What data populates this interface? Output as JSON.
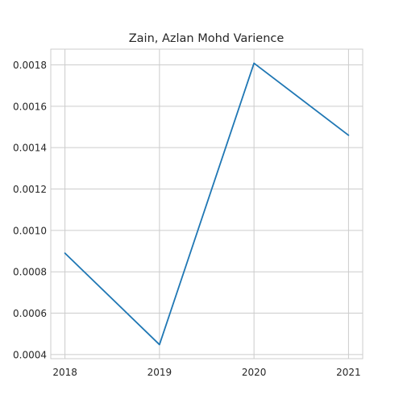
{
  "chart_data": {
    "type": "line",
    "title": "Zain, Azlan Mohd Varience",
    "xlabel": "",
    "ylabel": "",
    "x": [
      2018,
      2019,
      2020,
      2021
    ],
    "x_tick_labels": [
      "2018",
      "2019",
      "2020",
      "2021"
    ],
    "series": [
      {
        "values": [
          0.00089,
          0.000448,
          0.001808,
          0.00146
        ]
      }
    ],
    "y_ticks": [
      0.0004,
      0.0006,
      0.0008,
      0.001,
      0.0012,
      0.0014,
      0.0016,
      0.0018
    ],
    "y_tick_labels": [
      "0.0004",
      "0.0006",
      "0.0008",
      "0.0010",
      "0.0012",
      "0.0014",
      "0.0016",
      "0.0018"
    ],
    "xlim": [
      2017.85,
      2021.15
    ],
    "ylim": [
      0.00038,
      0.001876
    ],
    "grid": true,
    "line_color": "#1f77b4",
    "grid_color": "#cccccc",
    "frame_color": "#cccccc"
  }
}
